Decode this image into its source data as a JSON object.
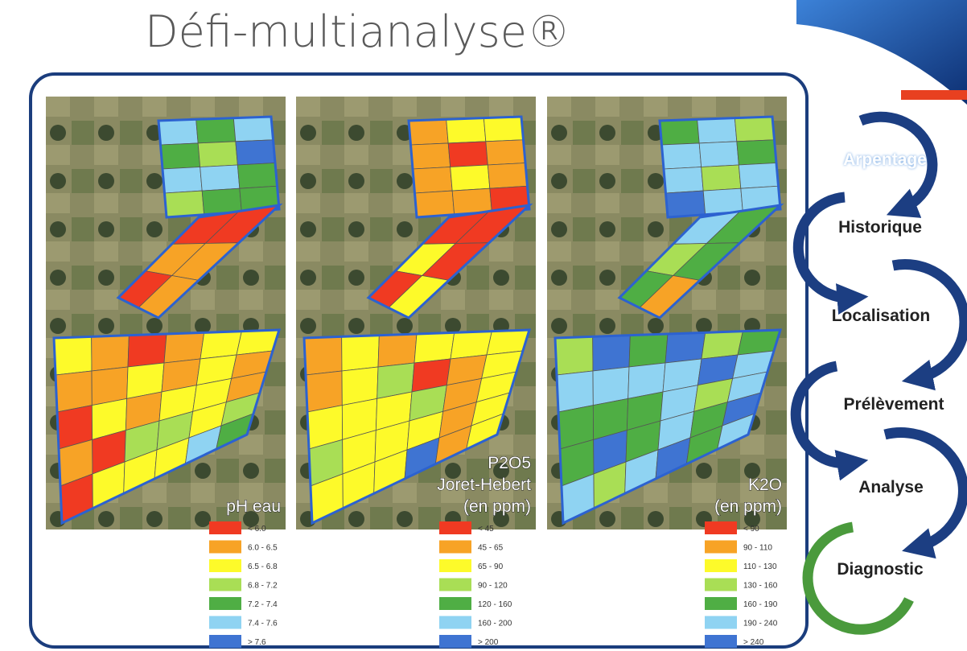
{
  "title": "Défi-multianalyse®",
  "maps": [
    {
      "label": [
        "pH eau"
      ],
      "legend": [
        {
          "label": "< 6.0",
          "color": "#f03a22"
        },
        {
          "label": "6.0 - 6.5",
          "color": "#f7a326"
        },
        {
          "label": "6.5 - 6.8",
          "color": "#fdfa2a"
        },
        {
          "label": "6.8 - 7.2",
          "color": "#a9de55"
        },
        {
          "label": "7.2 - 7.4",
          "color": "#4fae44"
        },
        {
          "label": "7.4 - 7.6",
          "color": "#8fd3f2"
        },
        {
          "label": "> 7.6",
          "color": "#3f74d2"
        }
      ]
    },
    {
      "label": [
        "P2O5",
        "Joret-Hebert",
        "(en ppm)"
      ],
      "legend": [
        {
          "label": "< 45",
          "color": "#f03a22"
        },
        {
          "label": "45 - 65",
          "color": "#f7a326"
        },
        {
          "label": "65 - 90",
          "color": "#fdfa2a"
        },
        {
          "label": "90 - 120",
          "color": "#a9de55"
        },
        {
          "label": "120 - 160",
          "color": "#4fae44"
        },
        {
          "label": "160 - 200",
          "color": "#8fd3f2"
        },
        {
          "label": "> 200",
          "color": "#3f74d2"
        }
      ]
    },
    {
      "label": [
        "K2O",
        "(en ppm)"
      ],
      "legend": [
        {
          "label": "< 90",
          "color": "#f03a22"
        },
        {
          "label": "90 - 110",
          "color": "#f7a326"
        },
        {
          "label": "110 - 130",
          "color": "#fdfa2a"
        },
        {
          "label": "130 - 160",
          "color": "#a9de55"
        },
        {
          "label": "160 - 190",
          "color": "#4fae44"
        },
        {
          "label": "190 - 240",
          "color": "#8fd3f2"
        },
        {
          "label": "> 240",
          "color": "#3f74d2"
        }
      ]
    }
  ],
  "steps": [
    "Arpentage",
    "Historique",
    "Localisation",
    "Prélèvement",
    "Analyse",
    "Diagnostic"
  ]
}
